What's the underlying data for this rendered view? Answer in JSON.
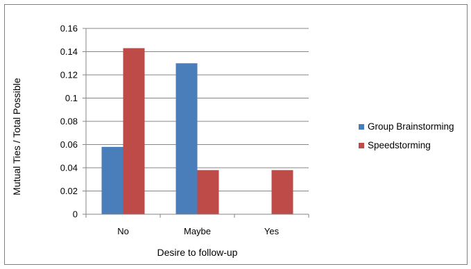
{
  "chart_data": {
    "type": "bar",
    "title": "",
    "xlabel": "Desire to follow-up",
    "ylabel": "Mutual Ties / Total Possible",
    "categories": [
      "No",
      "Maybe",
      "Yes"
    ],
    "series": [
      {
        "name": "Group Brainstorming",
        "color": "#4a7ebb",
        "values": [
          0.058,
          0.13,
          0
        ]
      },
      {
        "name": "Speedstorming",
        "color": "#be4b48",
        "values": [
          0.143,
          0.038,
          0.038
        ]
      }
    ],
    "ylim": [
      0,
      0.16
    ],
    "yticks": [
      0,
      0.02,
      0.04,
      0.06,
      0.08,
      0.1,
      0.12,
      0.14,
      0.16
    ],
    "ytick_labels": [
      "0",
      "0.02",
      "0.04",
      "0.06",
      "0.08",
      "0.1",
      "0.12",
      "0.14",
      "0.16"
    ],
    "grid": true,
    "legend_position": "right"
  }
}
